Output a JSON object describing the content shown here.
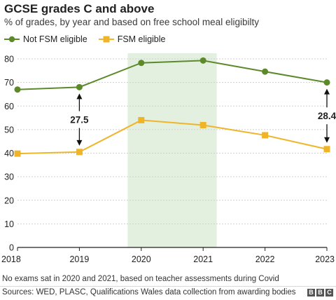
{
  "header": {
    "title": "GCSE grades C and above",
    "subtitle": "% of grades, by year and based on free school meal eligibilty"
  },
  "legend": [
    {
      "label": "Not FSM eligible",
      "color": "#5c8a2a",
      "marker": "circle"
    },
    {
      "label": "FSM eligible",
      "color": "#f0b429",
      "marker": "square"
    }
  ],
  "chart_data": {
    "type": "line",
    "x": [
      "2018",
      "2019",
      "2020",
      "2021",
      "2022",
      "2023"
    ],
    "series": [
      {
        "name": "Not FSM eligible",
        "color": "#5c8a2a",
        "marker": "circle",
        "values": [
          67.0,
          68.0,
          78.3,
          79.3,
          74.6,
          70.0
        ]
      },
      {
        "name": "FSM eligible",
        "color": "#f0b429",
        "marker": "square",
        "values": [
          39.8,
          40.5,
          54.0,
          51.9,
          47.6,
          41.7
        ]
      }
    ],
    "ylim": [
      0,
      80
    ],
    "yticks": [
      0,
      10,
      20,
      30,
      40,
      50,
      60,
      70,
      80
    ],
    "grid": true,
    "highlight": {
      "from": "2020",
      "to": "2021",
      "color": "#e3f0df"
    },
    "gap_annotations": [
      {
        "x": "2019",
        "label": "27.5"
      },
      {
        "x": "2023",
        "label": "28.4"
      }
    ]
  },
  "footer": {
    "note": "No exams sat in 2020 and 2021, based on teacher assessments during Covid",
    "source": "Sources: WED, PLASC, Qualifications Wales data collection from awarding bodies",
    "logo_letters": [
      "B",
      "B",
      "C"
    ]
  }
}
